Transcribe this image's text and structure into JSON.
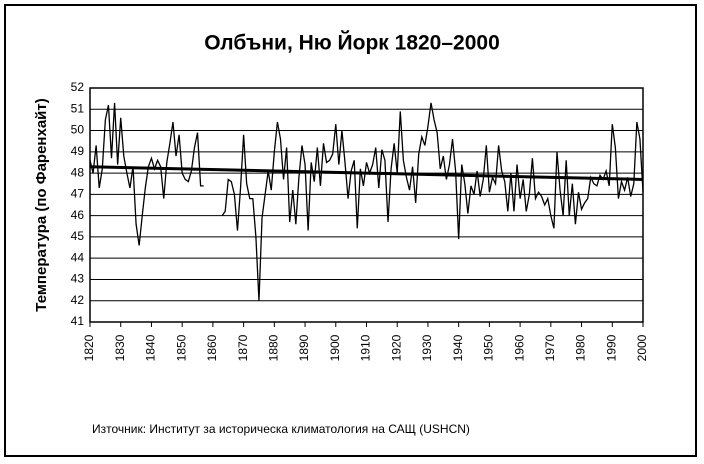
{
  "chart_data": {
    "type": "line",
    "title": "Олбъни, Ню Йорк 1820–2000",
    "y_label": "Температура (по Фаренхайт)",
    "source": "Източник: Институт за историческа климатология на САЩ (USHCN)",
    "x": [
      1820,
      1821,
      1822,
      1823,
      1824,
      1825,
      1826,
      1827,
      1828,
      1829,
      1830,
      1831,
      1832,
      1833,
      1834,
      1835,
      1836,
      1837,
      1838,
      1839,
      1840,
      1841,
      1842,
      1843,
      1844,
      1845,
      1846,
      1847,
      1848,
      1849,
      1850,
      1851,
      1852,
      1853,
      1854,
      1855,
      1856,
      1857,
      1858,
      1859,
      1860,
      1861,
      1862,
      1863,
      1864,
      1865,
      1866,
      1867,
      1868,
      1869,
      1870,
      1871,
      1872,
      1873,
      1874,
      1875,
      1876,
      1877,
      1878,
      1879,
      1880,
      1881,
      1882,
      1883,
      1884,
      1885,
      1886,
      1887,
      1888,
      1889,
      1890,
      1891,
      1892,
      1893,
      1894,
      1895,
      1896,
      1897,
      1898,
      1899,
      1900,
      1901,
      1902,
      1903,
      1904,
      1905,
      1906,
      1907,
      1908,
      1909,
      1910,
      1911,
      1912,
      1913,
      1914,
      1915,
      1916,
      1917,
      1918,
      1919,
      1920,
      1921,
      1922,
      1923,
      1924,
      1925,
      1926,
      1927,
      1928,
      1929,
      1930,
      1931,
      1932,
      1933,
      1934,
      1935,
      1936,
      1937,
      1938,
      1939,
      1940,
      1941,
      1942,
      1943,
      1944,
      1945,
      1946,
      1947,
      1948,
      1949,
      1950,
      1951,
      1952,
      1953,
      1954,
      1955,
      1956,
      1957,
      1958,
      1959,
      1960,
      1961,
      1962,
      1963,
      1964,
      1965,
      1966,
      1967,
      1968,
      1969,
      1970,
      1971,
      1972,
      1973,
      1974,
      1975,
      1976,
      1977,
      1978,
      1979,
      1980,
      1981,
      1982,
      1983,
      1984,
      1985,
      1986,
      1987,
      1988,
      1989,
      1990,
      1991,
      1992,
      1993,
      1994,
      1995,
      1996,
      1997,
      1998,
      1999,
      2000
    ],
    "series": [
      {
        "color": "#000000",
        "values": [
          48.6,
          48.0,
          49.3,
          47.3,
          48.2,
          50.5,
          51.2,
          48.7,
          51.3,
          48.4,
          50.6,
          48.8,
          48.0,
          47.3,
          48.3,
          45.6,
          44.6,
          46.0,
          47.3,
          48.3,
          48.7,
          48.2,
          48.6,
          48.3,
          46.8,
          48.5,
          49.4,
          50.4,
          48.8,
          49.8,
          48.0,
          47.7,
          47.6,
          48.1,
          49.2,
          49.9,
          47.4,
          47.4,
          null,
          null,
          null,
          null,
          null,
          46.0,
          46.2,
          47.7,
          47.6,
          47.0,
          45.3,
          47.3,
          49.8,
          47.5,
          46.8,
          46.8,
          45.0,
          42.0,
          45.9,
          47.0,
          48.1,
          47.2,
          49.0,
          50.4,
          49.6,
          47.7,
          49.2,
          45.7,
          47.2,
          45.6,
          47.8,
          49.3,
          48.4,
          45.3,
          48.5,
          47.6,
          49.2,
          47.4,
          49.4,
          48.5,
          48.6,
          48.9,
          50.3,
          48.4,
          50.0,
          48.5,
          46.8,
          48.1,
          48.6,
          45.4,
          48.2,
          47.4,
          48.5,
          48.0,
          48.4,
          49.2,
          47.3,
          49.1,
          48.6,
          45.7,
          48.2,
          49.4,
          48.0,
          50.9,
          48.6,
          47.8,
          47.2,
          48.3,
          46.6,
          48.9,
          49.7,
          49.3,
          50.2,
          51.3,
          50.5,
          49.9,
          48.2,
          48.8,
          47.7,
          48.4,
          49.6,
          48.1,
          44.9,
          48.4,
          47.5,
          46.1,
          47.4,
          47.0,
          48.1,
          46.9,
          47.7,
          49.3,
          47.1,
          47.8,
          47.5,
          49.3,
          48.1,
          47.6,
          46.2,
          48.0,
          46.2,
          48.4,
          46.8,
          47.7,
          46.2,
          47.0,
          48.7,
          46.8,
          47.1,
          46.9,
          46.5,
          46.8,
          46.0,
          45.4,
          49.0,
          47.2,
          46.0,
          48.6,
          46.0,
          47.5,
          45.6,
          47.1,
          46.3,
          46.6,
          46.8,
          47.8,
          47.5,
          47.4,
          47.9,
          47.7,
          48.1,
          47.4,
          50.3,
          49.2,
          46.8,
          47.6,
          47.2,
          47.8,
          46.9,
          47.5,
          50.4,
          49.6,
          47.1
        ]
      }
    ],
    "trend": {
      "x": [
        1820,
        2000
      ],
      "values": [
        48.3,
        47.7
      ],
      "color": "#000000"
    },
    "xlim": [
      1820,
      2000
    ],
    "xticks": [
      1820,
      1830,
      1840,
      1850,
      1860,
      1870,
      1880,
      1890,
      1900,
      1910,
      1920,
      1930,
      1940,
      1950,
      1960,
      1970,
      1980,
      1990,
      2000
    ],
    "ylim": [
      41,
      52
    ],
    "yticks": [
      41,
      42,
      43,
      44,
      45,
      46,
      47,
      48,
      49,
      50,
      51,
      52
    ],
    "grid": true
  }
}
